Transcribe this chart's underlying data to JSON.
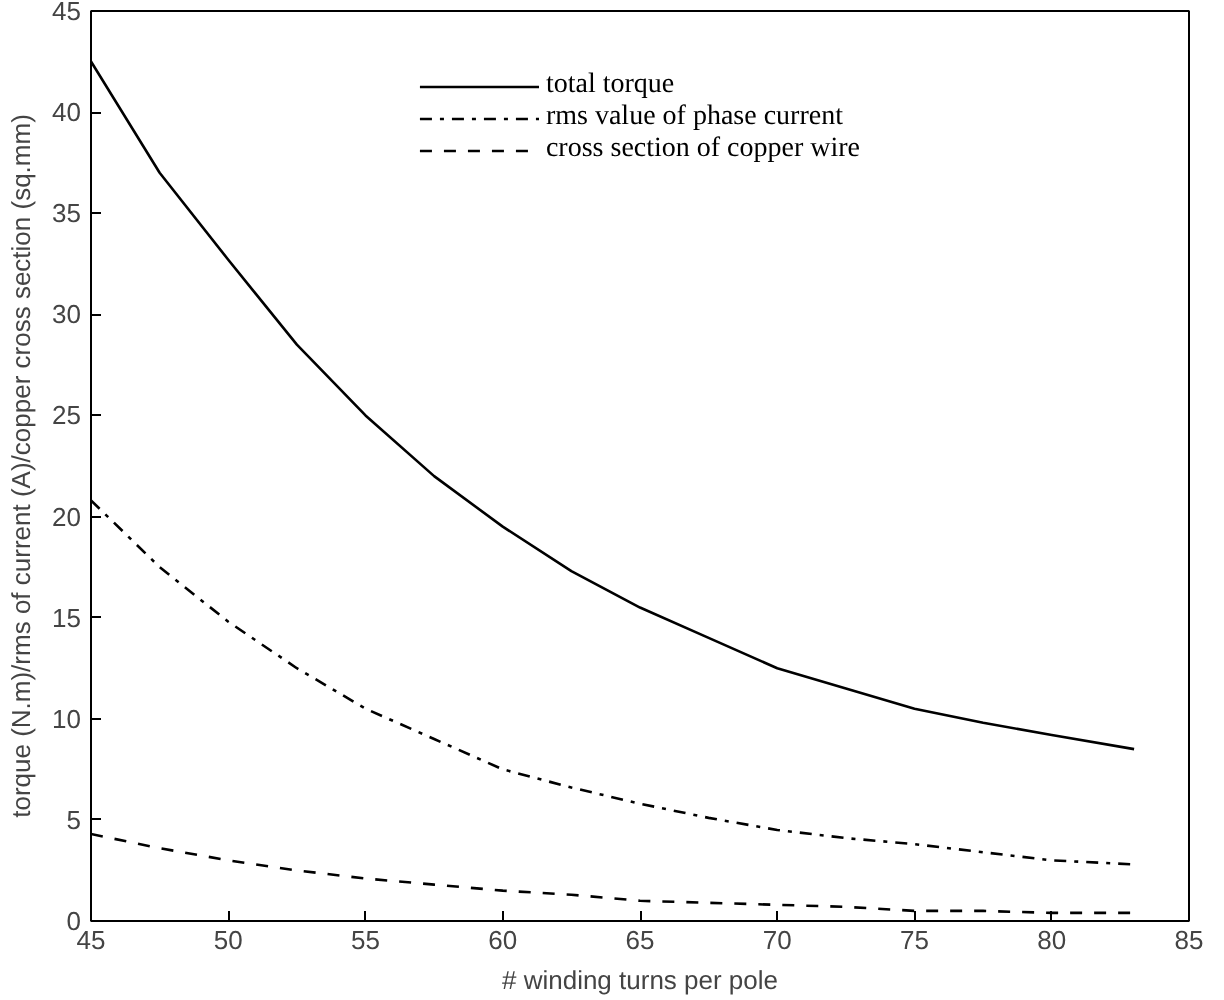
{
  "chart_data": {
    "type": "line",
    "xlabel": "# winding turns per pole",
    "ylabel": "torque (N.m)/rms of current (A)/copper cross section (sq.mm)",
    "x": [
      45,
      47.5,
      50,
      52.5,
      55,
      57.5,
      60,
      62.5,
      65,
      67.5,
      70,
      72.5,
      75,
      77.5,
      80,
      83
    ],
    "series": [
      {
        "name": "total torque",
        "color": "#000000",
        "line_style": "solid",
        "values": [
          42.5,
          37,
          32.7,
          28.5,
          25,
          22,
          19.5,
          17.3,
          15.5,
          14,
          12.5,
          11.5,
          10.5,
          9.8,
          9.2,
          8.5
        ]
      },
      {
        "name": "rms value of phase current",
        "color": "#000000",
        "line_style": "dashdot",
        "values": [
          20.8,
          17.5,
          14.8,
          12.5,
          10.5,
          9,
          7.5,
          6.6,
          5.8,
          5.1,
          4.5,
          4.1,
          3.8,
          3.4,
          3.0,
          2.8
        ]
      },
      {
        "name": "cross section of copper wire",
        "color": "#000000",
        "line_style": "dashed",
        "values": [
          4.3,
          3.6,
          3.0,
          2.5,
          2.1,
          1.8,
          1.5,
          1.3,
          1.0,
          0.9,
          0.8,
          0.7,
          0.5,
          0.5,
          0.4,
          0.4
        ]
      }
    ],
    "xlim": [
      45,
      85
    ],
    "ylim": [
      0,
      45
    ],
    "xticks": [
      45,
      50,
      55,
      60,
      65,
      70,
      75,
      80,
      85
    ],
    "yticks": [
      0,
      5,
      10,
      15,
      20,
      25,
      30,
      35,
      40,
      45
    ],
    "grid": false,
    "legend": "top"
  }
}
